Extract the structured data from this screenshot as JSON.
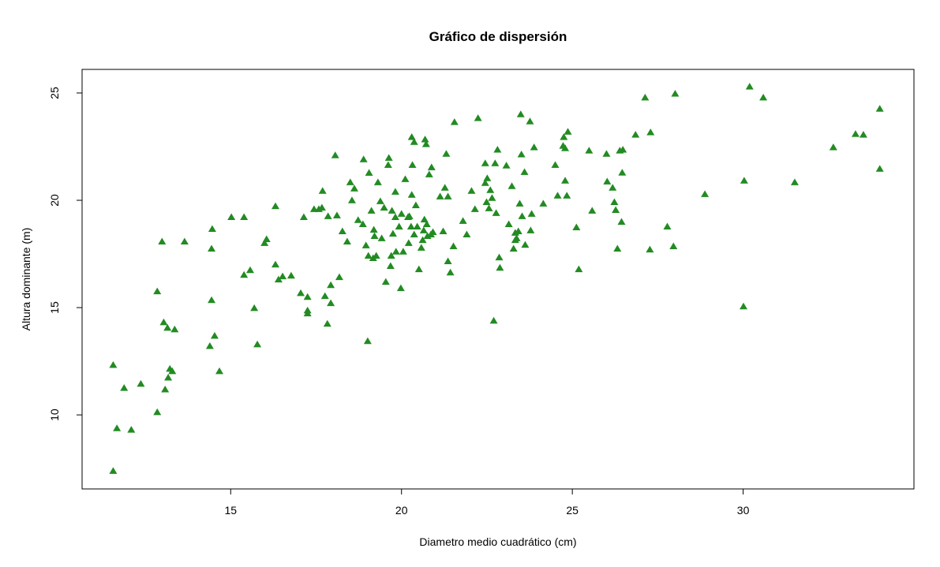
{
  "chart_data": {
    "type": "scatter",
    "title": "Gráfico de dispersión",
    "x_label": "Diametro medio cuadrático (cm)",
    "y_label": "Altura dominante (m)",
    "color": "#228b22",
    "xlim": [
      10.65,
      35.0
    ],
    "ylim": [
      6.55,
      26.1
    ],
    "xticks": [
      15,
      20,
      25,
      30
    ],
    "yticks": [
      10,
      15,
      20,
      25
    ],
    "x": [
      11.56,
      11.67,
      11.56,
      11.88,
      12.09,
      12.37,
      12.85,
      12.85,
      12.99,
      13.04,
      13.08,
      13.15,
      13.17,
      13.22,
      13.29,
      13.36,
      13.65,
      14.39,
      14.44,
      14.44,
      14.46,
      14.53,
      14.67,
      15.02,
      15.39,
      15.39,
      15.57,
      15.69,
      15.78,
      15.99,
      16.05,
      16.31,
      16.31,
      16.4,
      16.52,
      16.77,
      17.05,
      17.14,
      17.25,
      17.25,
      17.25,
      17.44,
      17.58,
      17.67,
      17.69,
      17.76,
      17.83,
      17.85,
      17.93,
      17.93,
      18.06,
      18.11,
      18.18,
      18.27,
      18.41,
      18.5,
      18.55,
      18.62,
      18.73,
      18.87,
      18.89,
      18.96,
      19.01,
      19.03,
      19.05,
      19.12,
      19.19,
      19.21,
      19.17,
      19.26,
      19.31,
      19.38,
      19.42,
      19.49,
      19.54,
      19.61,
      19.63,
      19.68,
      19.7,
      19.72,
      19.75,
      19.82,
      19.82,
      19.84,
      19.93,
      19.98,
      20.0,
      20.05,
      20.11,
      20.19,
      20.21,
      20.23,
      20.28,
      20.3,
      20.3,
      20.32,
      20.37,
      20.37,
      20.42,
      20.46,
      20.51,
      20.58,
      20.62,
      20.65,
      20.67,
      20.69,
      20.72,
      20.74,
      20.76,
      20.81,
      20.86,
      20.88,
      20.92,
      21.13,
      21.22,
      21.27,
      21.31,
      21.36,
      21.36,
      21.43,
      21.52,
      21.55,
      21.8,
      21.91,
      22.05,
      22.15,
      22.24,
      22.45,
      22.45,
      22.49,
      22.51,
      22.56,
      22.6,
      22.65,
      22.7,
      22.74,
      22.77,
      22.81,
      22.86,
      22.88,
      23.07,
      23.14,
      23.23,
      23.28,
      23.33,
      23.33,
      23.37,
      23.42,
      23.46,
      23.49,
      23.51,
      23.53,
      23.6,
      23.62,
      23.76,
      23.78,
      23.81,
      23.88,
      24.15,
      24.5,
      24.57,
      24.73,
      24.75,
      24.79,
      24.79,
      24.84,
      24.87,
      25.12,
      25.19,
      25.49,
      25.58,
      26.0,
      26.02,
      26.18,
      26.23,
      26.27,
      26.32,
      26.39,
      26.44,
      26.46,
      26.48,
      26.85,
      27.13,
      27.29,
      27.27,
      27.78,
      27.96,
      28.01,
      28.88,
      30.01,
      30.03,
      30.19,
      30.59,
      31.51,
      32.64,
      33.29,
      33.52,
      34.0,
      34.0
    ],
    "y": [
      12.32,
      9.37,
      7.38,
      11.25,
      9.3,
      11.44,
      10.12,
      15.75,
      18.07,
      14.31,
      11.18,
      14.05,
      11.73,
      12.14,
      12.03,
      13.98,
      18.07,
      13.2,
      15.34,
      17.74,
      18.66,
      13.68,
      12.03,
      19.21,
      19.21,
      16.52,
      16.74,
      14.97,
      13.28,
      18.0,
      18.18,
      19.72,
      17.0,
      16.3,
      16.45,
      16.48,
      15.67,
      19.21,
      14.86,
      15.49,
      14.72,
      19.58,
      19.58,
      19.65,
      20.43,
      15.53,
      14.24,
      19.25,
      16.04,
      15.2,
      22.09,
      19.29,
      16.41,
      18.55,
      18.07,
      20.83,
      19.99,
      20.54,
      19.07,
      18.88,
      21.9,
      17.89,
      13.43,
      17.41,
      21.27,
      19.51,
      18.62,
      18.33,
      17.3,
      17.41,
      20.83,
      19.95,
      18.22,
      19.65,
      16.19,
      21.64,
      21.97,
      16.93,
      17.41,
      19.51,
      18.44,
      20.39,
      19.21,
      17.6,
      18.77,
      15.9,
      19.36,
      17.6,
      20.98,
      19.21,
      18.0,
      19.25,
      18.77,
      20.25,
      22.94,
      21.64,
      22.71,
      18.4,
      19.76,
      18.77,
      16.78,
      17.78,
      18.14,
      18.59,
      19.1,
      22.83,
      22.61,
      18.88,
      18.33,
      21.2,
      18.4,
      21.53,
      18.51,
      20.17,
      18.55,
      20.58,
      22.16,
      20.17,
      17.15,
      16.63,
      17.85,
      23.64,
      19.03,
      18.4,
      20.43,
      19.58,
      23.82,
      21.72,
      20.8,
      19.91,
      21.02,
      19.62,
      20.47,
      20.1,
      14.38,
      21.72,
      19.4,
      22.35,
      17.33,
      16.85,
      21.61,
      18.88,
      20.65,
      17.74,
      18.48,
      18.14,
      18.22,
      18.55,
      19.84,
      24.0,
      22.13,
      19.25,
      21.31,
      17.92,
      23.67,
      18.59,
      19.36,
      22.46,
      19.84,
      21.64,
      20.21,
      22.53,
      22.94,
      22.42,
      20.91,
      20.21,
      23.19,
      18.73,
      16.78,
      22.31,
      19.51,
      22.16,
      20.87,
      20.58,
      19.91,
      19.54,
      17.74,
      22.31,
      18.99,
      21.28,
      22.35,
      23.05,
      24.78,
      23.16,
      17.7,
      18.77,
      17.85,
      24.96,
      20.28,
      15.05,
      20.91,
      25.29,
      24.78,
      20.83,
      22.46,
      23.08,
      23.05,
      24.26,
      21.46
    ]
  }
}
